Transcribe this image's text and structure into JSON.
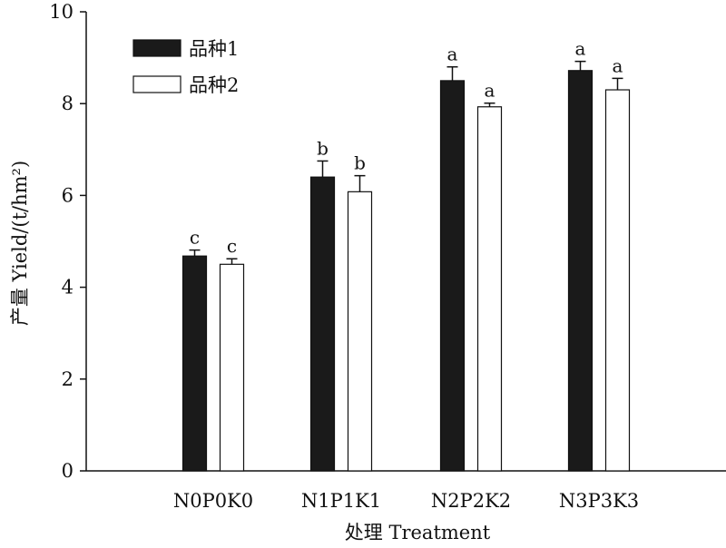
{
  "chart_data": {
    "type": "bar",
    "xlabel": "处理  Treatment",
    "ylabel": "产量  Yield/(t/hm²)",
    "ylim": [
      0,
      10
    ],
    "yticks": [
      0,
      2,
      4,
      6,
      8,
      10
    ],
    "categories": [
      "N0P0K0",
      "N1P1K1",
      "N2P2K2",
      "N3P3K3"
    ],
    "legend_position": "top-left",
    "series": [
      {
        "name": "品种1",
        "fill": "#1a1a1a",
        "values": [
          4.68,
          6.4,
          8.5,
          8.72
        ],
        "errors": [
          0.13,
          0.35,
          0.3,
          0.2
        ],
        "labels": [
          "c",
          "b",
          "a",
          "a"
        ]
      },
      {
        "name": "品种2",
        "fill": "#ffffff",
        "values": [
          4.5,
          6.08,
          7.93,
          8.3
        ],
        "errors": [
          0.12,
          0.35,
          0.08,
          0.25
        ],
        "labels": [
          "c",
          "b",
          "a",
          "a"
        ]
      }
    ]
  }
}
